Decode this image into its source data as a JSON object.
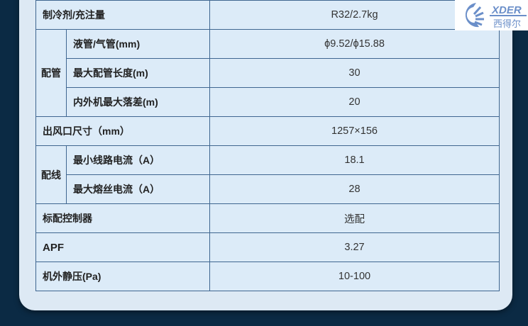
{
  "rows": [
    {
      "label": "制冷剂/充注量",
      "value": "R32/2.7kg"
    },
    {
      "group": "配管",
      "items": [
        {
          "label": "液管/气管(mm)",
          "value": "ϕ9.52/ϕ15.88"
        },
        {
          "label": "最大配管长度(m)",
          "value": "30"
        },
        {
          "label": "内外机最大落差(m)",
          "value": "20"
        }
      ]
    },
    {
      "label": "出风口尺寸（mm）",
      "value": "1257×156"
    },
    {
      "group": "配线",
      "items": [
        {
          "label": "最小线路电流（A）",
          "value": "18.1"
        },
        {
          "label": "最大熔丝电流（A）",
          "value": "28"
        }
      ]
    },
    {
      "label": "标配控制器",
      "value": "选配"
    },
    {
      "label": "APF",
      "value": "3.27"
    },
    {
      "label": "机外静压(Pa)",
      "value": "10-100"
    }
  ],
  "logo": {
    "text": "XDER",
    "subtext": "西得尔",
    "color": "#6b8fc9"
  }
}
